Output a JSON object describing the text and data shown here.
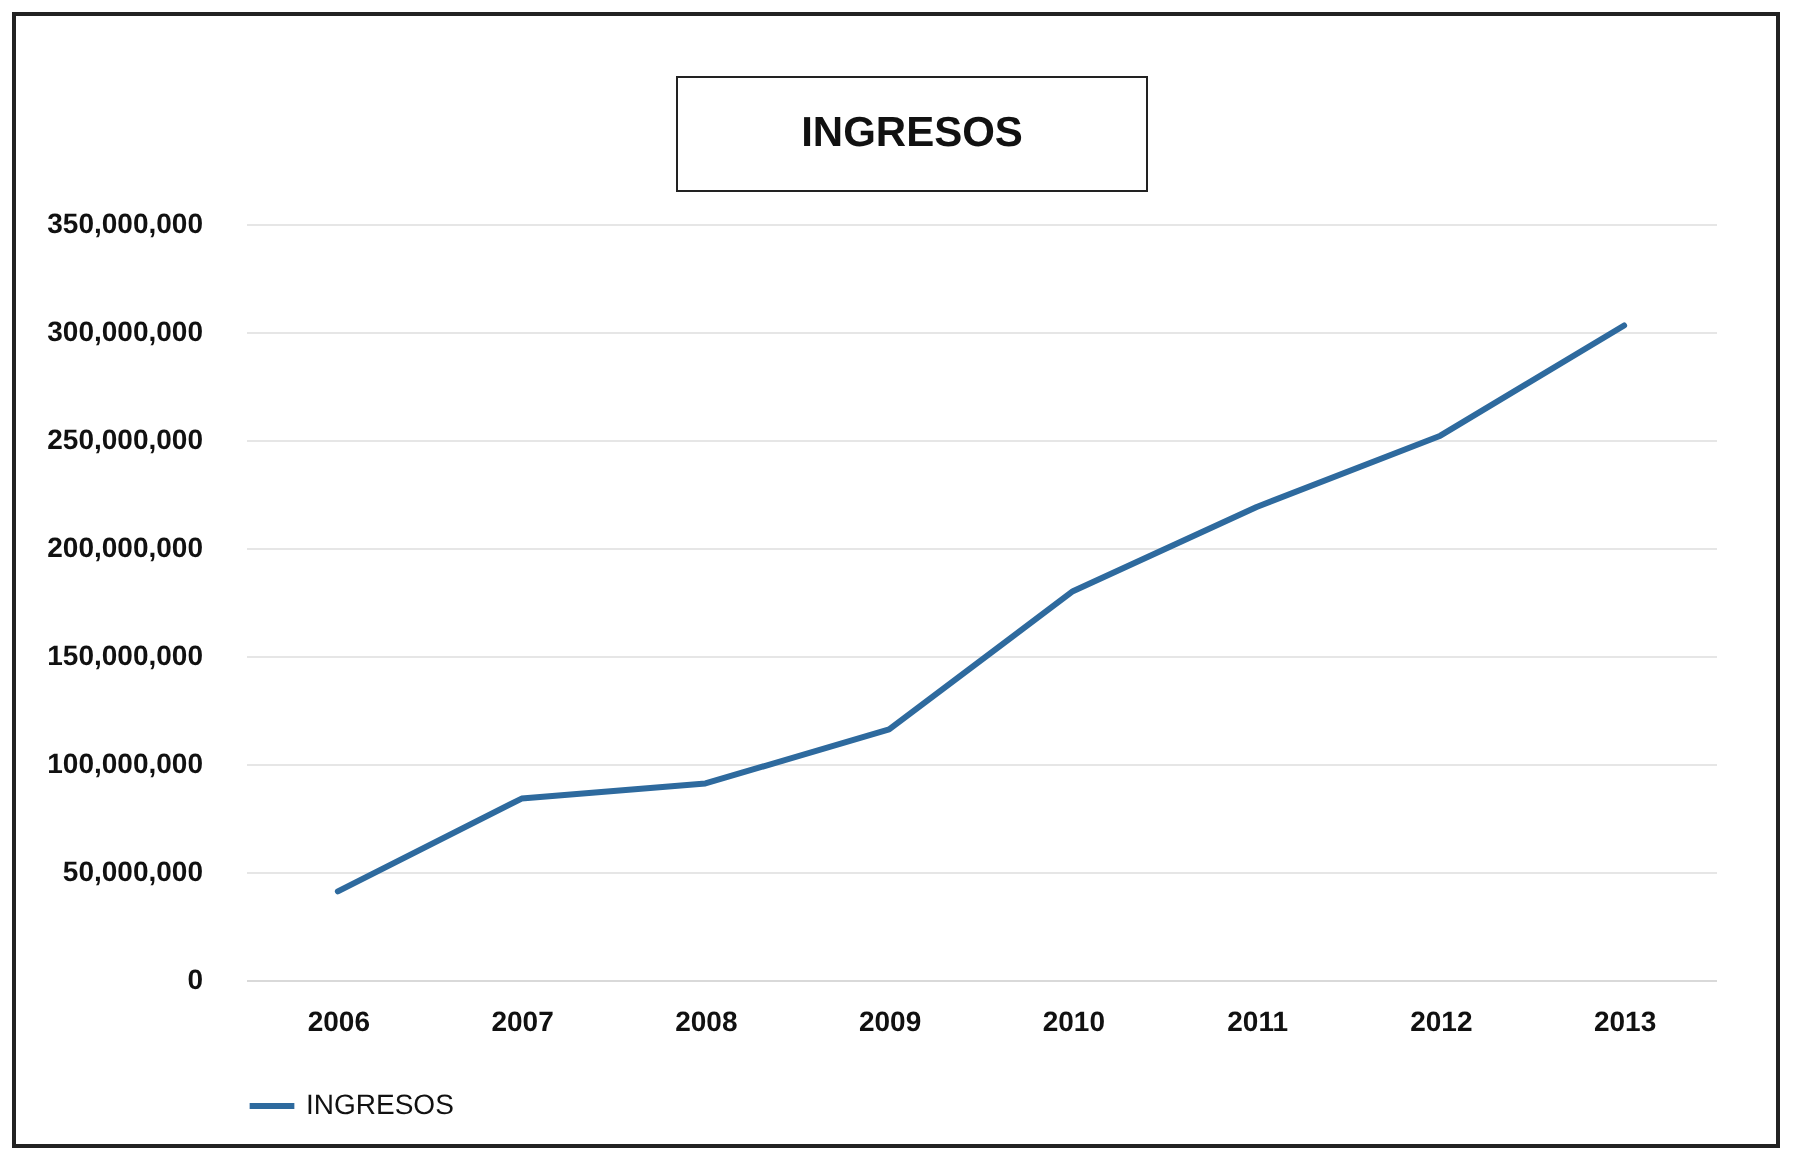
{
  "chart_data": {
    "type": "line",
    "title": "INGRESOS",
    "categories": [
      "2006",
      "2007",
      "2008",
      "2009",
      "2010",
      "2011",
      "2012",
      "2013"
    ],
    "series": [
      {
        "name": "INGRESOS",
        "color": "#2e6a9e",
        "values": [
          41000000,
          84000000,
          91000000,
          116000000,
          180000000,
          219000000,
          252000000,
          303000000
        ]
      }
    ],
    "ylim": [
      0,
      350000000
    ],
    "yticks": [
      0,
      {
        "value": 50000000,
        "label": "50,000,000"
      },
      {
        "value": 100000000,
        "label": "100,000,000"
      },
      {
        "value": 150000000,
        "label": "150,000,000"
      },
      {
        "value": 200000000,
        "label": "200,000,000"
      },
      {
        "value": 250000000,
        "label": "250,000,000"
      },
      {
        "value": 300000000,
        "label": "300,000,000"
      },
      {
        "value": 350000000,
        "label": "350,000,000"
      }
    ],
    "grid": "y",
    "legend": "bottom",
    "marker": "none",
    "line_style": "solid"
  }
}
